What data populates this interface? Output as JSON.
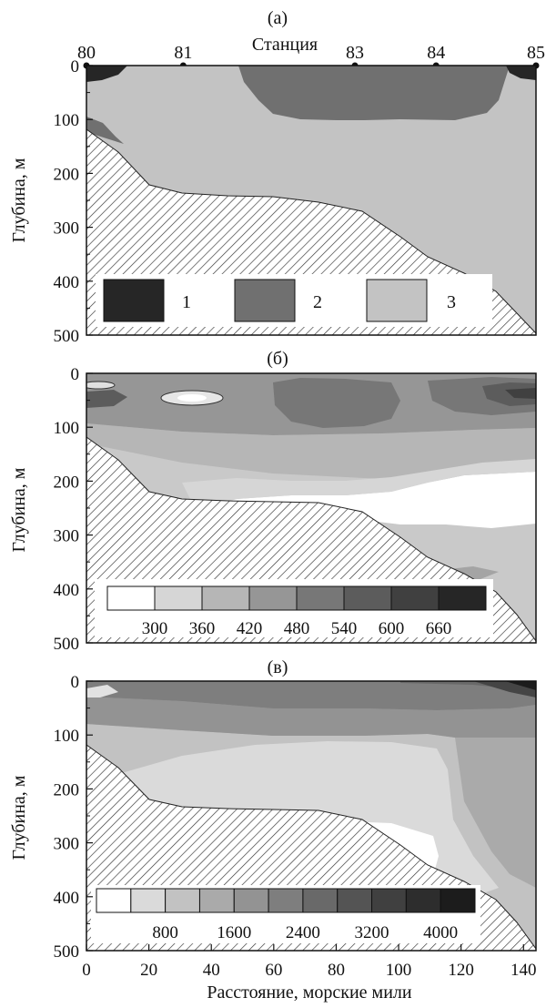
{
  "chart_data": [
    {
      "type": "heatmap",
      "panel_label": "(а)",
      "title": "Станция",
      "xlabel": "",
      "ylabel": "Глубина, м",
      "xlim": [
        0,
        144
      ],
      "ylim": [
        500,
        0
      ],
      "station_labels": [
        {
          "label": "80",
          "x": 0
        },
        {
          "label": "81",
          "x": 31
        },
        {
          "label": "83",
          "x": 86
        },
        {
          "label": "84",
          "x": 112
        },
        {
          "label": "85",
          "x": 144
        }
      ],
      "y_ticks": [
        "0",
        "100",
        "200",
        "300",
        "400",
        "500"
      ],
      "legend": [
        "1",
        "2",
        "3"
      ],
      "zone_colors": {
        "1": "#262626",
        "2": "#707070",
        "3": "#c3c3c3"
      },
      "seabed_profile": [
        [
          0,
          120
        ],
        [
          10,
          160
        ],
        [
          20,
          205
        ],
        [
          32,
          228
        ],
        [
          45,
          235
        ],
        [
          60,
          238
        ],
        [
          70,
          245
        ],
        [
          80,
          248
        ],
        [
          88,
          268
        ],
        [
          100,
          300
        ],
        [
          112,
          355
        ],
        [
          125,
          395
        ],
        [
          138,
          420
        ],
        [
          144,
          500
        ]
      ],
      "zones": [
        {
          "zone": "3",
          "region": "вся водная толща"
        },
        {
          "zone": "2",
          "region": "ст. 81–84, 0–100 м"
        },
        {
          "zone": "2",
          "region": "ст. 80, 100–150 м"
        },
        {
          "zone": "1",
          "region": "ст. 80 и 85, 0–30 м"
        }
      ]
    },
    {
      "type": "heatmap",
      "panel_label": "(б)",
      "xlabel": "",
      "ylabel": "Глубина, м",
      "xlim": [
        0,
        144
      ],
      "ylim": [
        500,
        0
      ],
      "y_ticks": [
        "0",
        "100",
        "200",
        "300",
        "400",
        "500"
      ],
      "colorbar_levels": [
        300,
        360,
        420,
        480,
        540,
        600,
        660
      ],
      "colorbar_labels": [
        "300",
        "360",
        "420",
        "480",
        "540",
        "600",
        "660"
      ],
      "colorbar_colors": [
        "#ffffff",
        "#d6d6d6",
        "#b6b6b6",
        "#969696",
        "#777777",
        "#5c5c5c",
        "#404040",
        "#262626"
      ],
      "seabed_profile": [
        [
          0,
          120
        ],
        [
          10,
          160
        ],
        [
          20,
          205
        ],
        [
          32,
          228
        ],
        [
          45,
          235
        ],
        [
          60,
          238
        ],
        [
          70,
          245
        ],
        [
          80,
          248
        ],
        [
          88,
          268
        ],
        [
          100,
          300
        ],
        [
          112,
          355
        ],
        [
          125,
          395
        ],
        [
          138,
          420
        ],
        [
          144,
          500
        ]
      ]
    },
    {
      "type": "heatmap",
      "panel_label": "(в)",
      "xlabel": "Расстояние, морские мили",
      "ylabel": "Глубина, м",
      "xlim": [
        0,
        144
      ],
      "ylim": [
        500,
        0
      ],
      "x_ticks": [
        "0",
        "20",
        "40",
        "60",
        "80",
        "100",
        "120",
        "140"
      ],
      "y_ticks": [
        "0",
        "100",
        "200",
        "300",
        "400",
        "500"
      ],
      "colorbar_levels": [
        400,
        800,
        1200,
        1600,
        2000,
        2400,
        2800,
        3200,
        3600,
        4000
      ],
      "colorbar_labels": [
        "800",
        "1600",
        "2400",
        "3200",
        "4000"
      ],
      "colorbar_colors": [
        "#ffffff",
        "#dadada",
        "#c2c2c2",
        "#aaaaaa",
        "#939393",
        "#7e7e7e",
        "#696969",
        "#545454",
        "#404040",
        "#2d2d2d",
        "#1c1c1c"
      ],
      "seabed_profile": [
        [
          0,
          120
        ],
        [
          10,
          160
        ],
        [
          20,
          205
        ],
        [
          32,
          228
        ],
        [
          45,
          235
        ],
        [
          60,
          238
        ],
        [
          70,
          245
        ],
        [
          80,
          248
        ],
        [
          88,
          268
        ],
        [
          100,
          300
        ],
        [
          112,
          355
        ],
        [
          125,
          395
        ],
        [
          138,
          420
        ],
        [
          144,
          500
        ]
      ]
    }
  ]
}
